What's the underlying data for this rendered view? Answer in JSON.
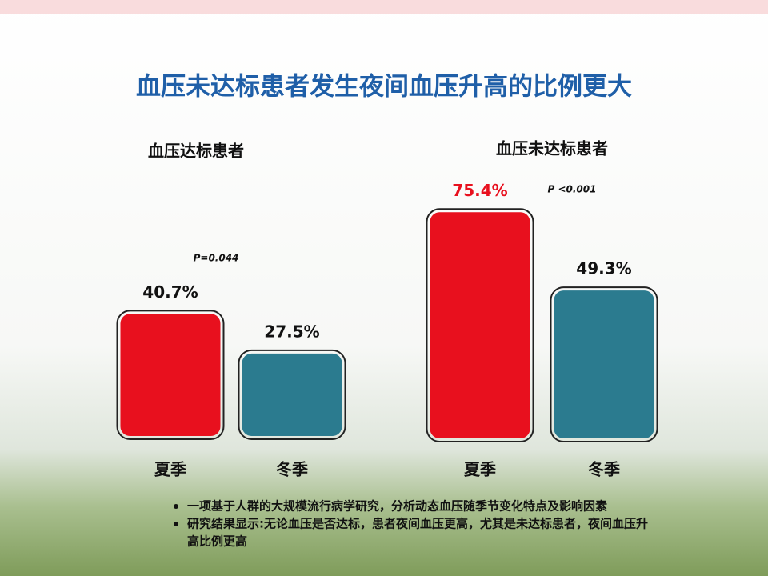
{
  "title": "血压未达标患者发生夜间血压升高的比例更大",
  "chart_data": [
    {
      "type": "bar",
      "title": "血压达标患者",
      "categories": [
        "夏季",
        "冬季"
      ],
      "values": [
        40.7,
        27.5
      ],
      "value_labels": [
        "40.7%",
        "27.5%"
      ],
      "colors": [
        "#e8101e",
        "#2b7b8f"
      ],
      "value_label_colors": [
        "#111111",
        "#111111"
      ],
      "annotation": "P=0.044"
    },
    {
      "type": "bar",
      "title": "血压未达标患者",
      "categories": [
        "夏季",
        "冬季"
      ],
      "values": [
        75.4,
        49.3
      ],
      "value_labels": [
        "75.4%",
        "49.3%"
      ],
      "colors": [
        "#e8101e",
        "#2b7b8f"
      ],
      "value_label_colors": [
        "#e8101e",
        "#111111"
      ],
      "annotation": "P <0.001"
    }
  ],
  "bullets": [
    "一项基于人群的大规模流行病学研究，分析动态血压随季节变化特点及影响因素",
    "研究结果显示:无论血压是否达标，患者夜间血压更高，尤其是未达标患者，夜间血压升",
    "高比例更高"
  ]
}
